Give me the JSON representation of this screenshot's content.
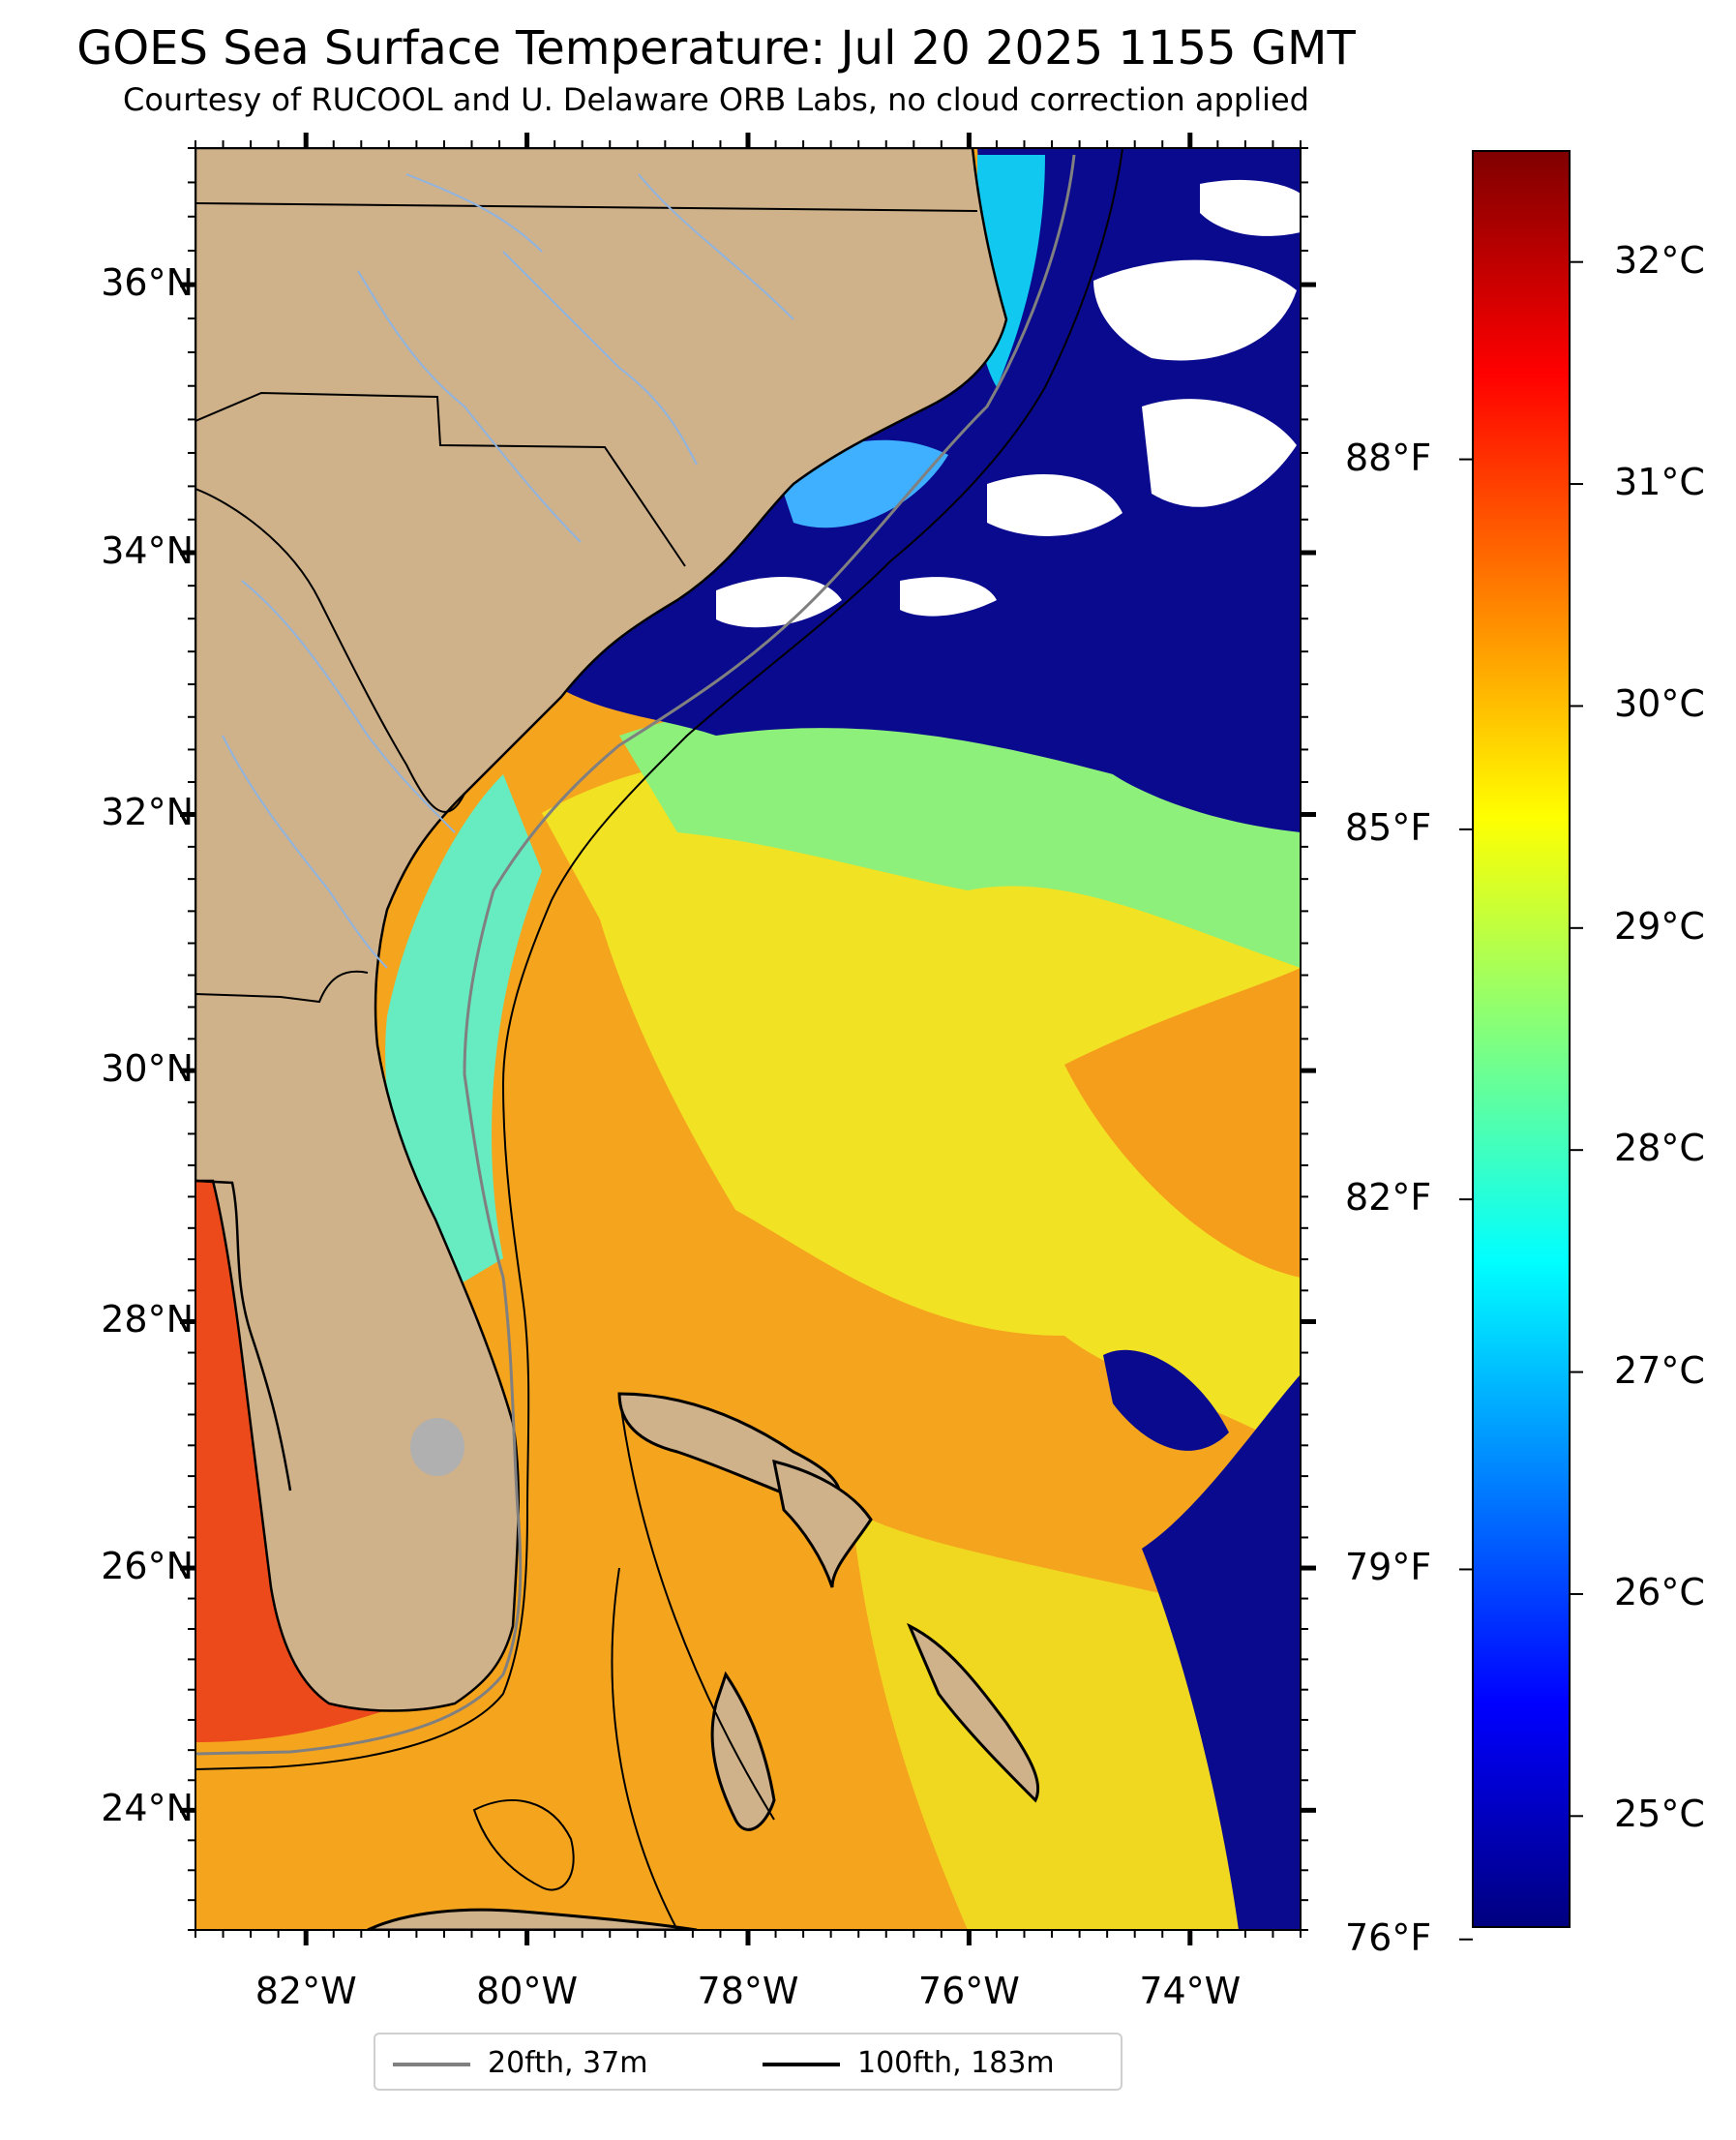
{
  "header": {
    "title": "GOES Sea Surface Temperature: Jul 20 2025 1155 GMT",
    "subtitle": "Courtesy of RUCOOL and U. Delaware ORB Labs, no cloud correction applied"
  },
  "map": {
    "lon_range": [
      -83,
      -73
    ],
    "lat_range": [
      23,
      37
    ],
    "lat_ticks": [
      {
        "value": 24,
        "label": "24°N"
      },
      {
        "value": 26,
        "label": "26°N"
      },
      {
        "value": 28,
        "label": "28°N"
      },
      {
        "value": 30,
        "label": "30°N"
      },
      {
        "value": 32,
        "label": "32°N"
      },
      {
        "value": 34,
        "label": "34°N"
      },
      {
        "value": 36,
        "label": "36°N"
      }
    ],
    "lon_ticks": [
      {
        "value": -82,
        "label": "82°W"
      },
      {
        "value": -80,
        "label": "80°W"
      },
      {
        "value": -78,
        "label": "78°W"
      },
      {
        "value": -76,
        "label": "76°W"
      },
      {
        "value": -74,
        "label": "74°W"
      }
    ],
    "colors": {
      "land": "#cfb18a",
      "ocean_warm": "#f5a020",
      "ocean_hot": "#e8401a",
      "ocean_mid": "#f2e020",
      "ocean_cool": "#60f0a0",
      "ocean_cold": "#0a0a8e",
      "cloud": "#ffffff",
      "rivers": "#8fb4e0",
      "borders": "#000000",
      "lake": "#b0b0b0"
    }
  },
  "colorbar": {
    "celsius_range": [
      24.5,
      32.5
    ],
    "celsius_ticks": [
      {
        "value": 25,
        "label": "25°C"
      },
      {
        "value": 26,
        "label": "26°C"
      },
      {
        "value": 27,
        "label": "27°C"
      },
      {
        "value": 28,
        "label": "28°C"
      },
      {
        "value": 29,
        "label": "29°C"
      },
      {
        "value": 30,
        "label": "30°C"
      },
      {
        "value": 31,
        "label": "31°C"
      },
      {
        "value": 32,
        "label": "32°C"
      }
    ],
    "fahrenheit_ticks": [
      {
        "value": 76,
        "label": "76°F"
      },
      {
        "value": 79,
        "label": "79°F"
      },
      {
        "value": 82,
        "label": "82°F"
      },
      {
        "value": 85,
        "label": "85°F"
      },
      {
        "value": 88,
        "label": "88°F"
      }
    ],
    "stops": [
      "#00007f",
      "#0000ff",
      "#007fff",
      "#00ffff",
      "#7fff7f",
      "#ffff00",
      "#ff7f00",
      "#ff0000",
      "#7f0000"
    ]
  },
  "legend": {
    "items": [
      {
        "label": "20fth, 37m",
        "color": "#808080"
      },
      {
        "label": "100fth, 183m",
        "color": "#000000"
      }
    ]
  }
}
